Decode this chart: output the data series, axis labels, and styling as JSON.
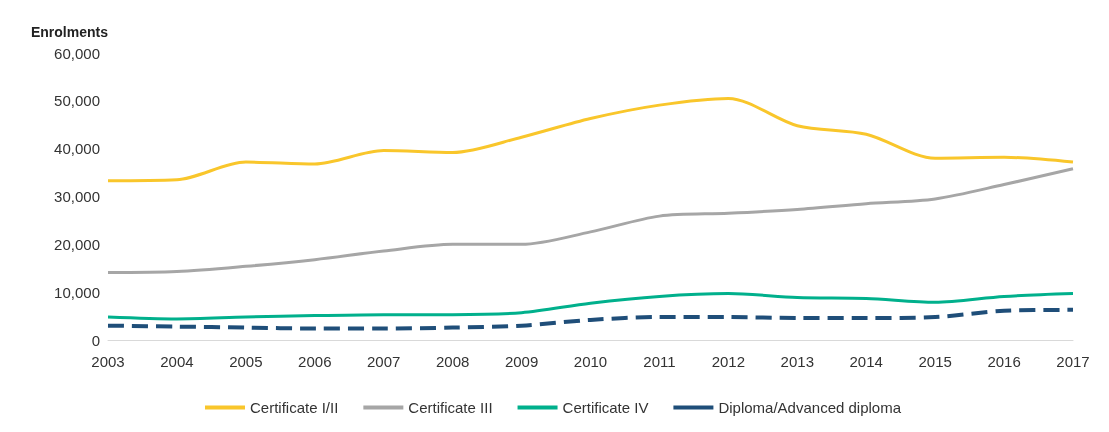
{
  "chart_data": {
    "type": "line",
    "ylabel": "Enrolments",
    "categories": [
      "2003",
      "2004",
      "2005",
      "2006",
      "2007",
      "2008",
      "2009",
      "2010",
      "2011",
      "2012",
      "2013",
      "2014",
      "2015",
      "2016",
      "2017"
    ],
    "series": [
      {
        "name": "Certificate I/II",
        "color": "#f9c62b",
        "line_style": "solid",
        "values": [
          33300,
          33500,
          37200,
          36800,
          39600,
          39200,
          42400,
          46300,
          49100,
          50500,
          44800,
          43000,
          38000,
          38200,
          37200
        ]
      },
      {
        "name": "Certificate III",
        "color": "#a6a6a6",
        "line_style": "solid",
        "values": [
          14100,
          14300,
          15400,
          16800,
          18600,
          20000,
          20000,
          22600,
          25900,
          26500,
          27300,
          28500,
          29500,
          32500,
          35800
        ]
      },
      {
        "name": "Certificate IV",
        "color": "#00b08c",
        "line_style": "solid",
        "values": [
          4800,
          4400,
          4800,
          5100,
          5300,
          5300,
          5700,
          7700,
          9100,
          9700,
          8900,
          8700,
          7900,
          9100,
          9700
        ]
      },
      {
        "name": "Diploma/Advanced diploma",
        "color": "#1f4e79",
        "line_style": "dashed",
        "values": [
          3000,
          2800,
          2600,
          2400,
          2400,
          2600,
          3000,
          4200,
          4800,
          4800,
          4600,
          4600,
          4800,
          6100,
          6300
        ]
      }
    ],
    "ylim": [
      0,
      60000
    ],
    "yticks": [
      0,
      {
        "value": 10000,
        "label": "10,000"
      },
      {
        "value": 20000,
        "label": "20,000"
      },
      {
        "value": 30000,
        "label": "30,000"
      },
      {
        "value": 40000,
        "label": "40,000"
      },
      {
        "value": 50000,
        "label": "50,000"
      },
      {
        "value": 60000,
        "label": "60,000"
      }
    ],
    "grid": false,
    "legend": "bottom",
    "marker": "none"
  }
}
